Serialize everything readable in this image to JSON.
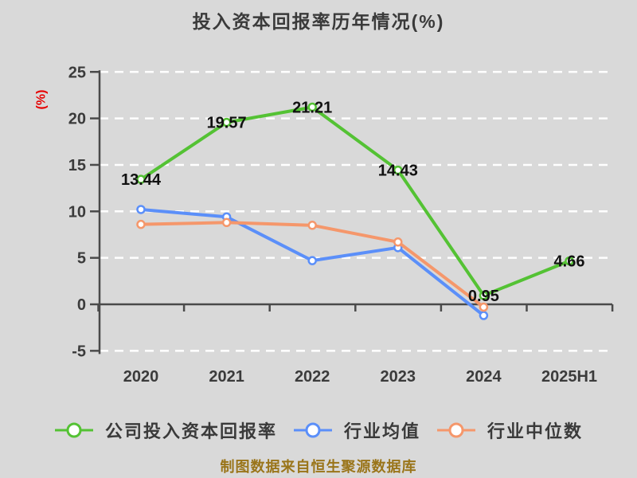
{
  "chart_data": {
    "type": "line",
    "title": "投入资本回报率历年情况(%)",
    "ylabel": "(%)",
    "source_note": "制图数据来自恒生聚源数据库",
    "categories": [
      "2020",
      "2021",
      "2022",
      "2023",
      "2024",
      "2025H1"
    ],
    "yticks": [
      "25",
      "20",
      "15",
      "10",
      "5",
      "0",
      "-5"
    ],
    "ylim": [
      -5,
      25
    ],
    "grid": "horizontal white dashed lines",
    "legend_position": "bottom",
    "series": [
      {
        "name": "公司投入资本回报率",
        "color": "#54c234",
        "marker": "circle-white-fill",
        "values": [
          13.44,
          19.57,
          21.21,
          14.43,
          0.95,
          4.66
        ],
        "data_labels": [
          "13.44",
          "19.57",
          "21.21",
          "14.43",
          "0.95",
          "4.66"
        ]
      },
      {
        "name": "行业均值",
        "color": "#5b8ff9",
        "marker": "circle-white-fill",
        "values": [
          10.2,
          9.4,
          4.7,
          6.1,
          -1.2,
          null
        ],
        "data_labels": null
      },
      {
        "name": "行业中位数",
        "color": "#f5976b",
        "marker": "circle-white-fill",
        "values": [
          8.6,
          8.8,
          8.5,
          6.7,
          -0.3,
          null
        ],
        "data_labels": null
      }
    ],
    "colors": {
      "background": "#d9d9d9",
      "gridline": "#ffffff",
      "axis": "#4a4a4a",
      "tick_label": "#3b3b3b",
      "title": "#3a3a3a",
      "ylabel": "#e60000",
      "data_label": "#111111",
      "source_note": "#9a751a"
    }
  }
}
